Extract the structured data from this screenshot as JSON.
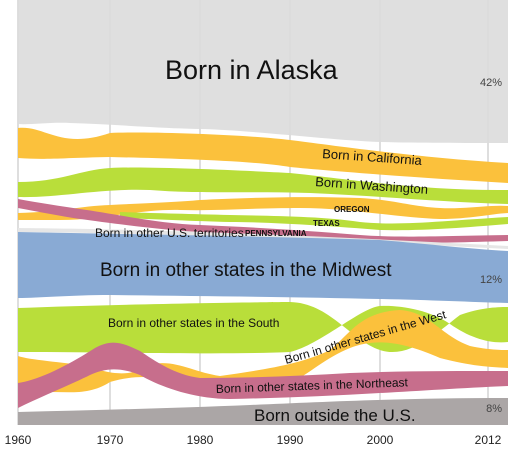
{
  "chart_data": {
    "type": "area",
    "x_ticks": [
      "1960",
      "1970",
      "1980",
      "1990",
      "2000",
      "2012"
    ],
    "series": [
      {
        "name": "Born in Alaska",
        "pct_label": "42%",
        "color": "#dcdcdc"
      },
      {
        "name": "Born in California",
        "color": "#fbc13c"
      },
      {
        "name": "Born in Washington",
        "color": "#b9de3a"
      },
      {
        "name": "OREGON",
        "color": "#fbc13c"
      },
      {
        "name": "TEXAS",
        "color": "#b9de3a"
      },
      {
        "name": "PENNSYLVANIA",
        "color": "#c76e8c"
      },
      {
        "name": "Born in other U.S. territories",
        "color": "#e6e6e6"
      },
      {
        "name": "Born in other states in the Midwest",
        "pct_label": "12%",
        "color": "#89aad4"
      },
      {
        "name": "Born in other states in the South",
        "color": "#b9de3a"
      },
      {
        "name": "Born in other states in the West",
        "color": "#fbc13c"
      },
      {
        "name": "Born in other states in the Northeast",
        "color": "#c76e8c"
      },
      {
        "name": "Born outside the U.S.",
        "pct_label": "8%",
        "color": "#aba6a6"
      }
    ]
  }
}
